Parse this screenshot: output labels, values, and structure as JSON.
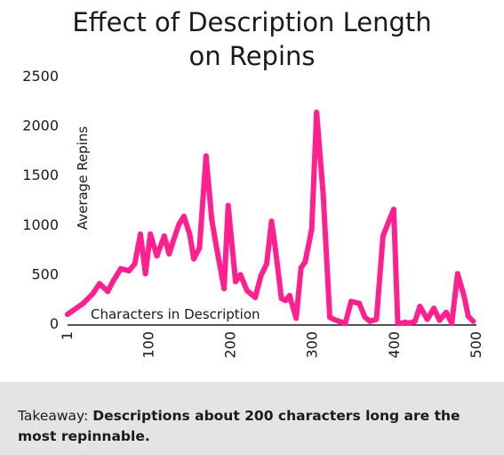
{
  "chart_data": {
    "type": "line",
    "title_line1": "Effect of Description Length",
    "title_line2": "on Repins",
    "xlabel": "Characters in Description",
    "ylabel": "Average Repins",
    "xlim": [
      1,
      500
    ],
    "ylim": [
      0,
      2500
    ],
    "x_ticks": [
      "1",
      "100",
      "200",
      "300",
      "400",
      "500"
    ],
    "y_ticks": [
      "0",
      "500",
      "1000",
      "1500",
      "2000",
      "2500"
    ],
    "grid": false,
    "series_color": "#ff1f8e",
    "series": [
      {
        "x": [
          1,
          20,
          32,
          40,
          50,
          57,
          66,
          76,
          83,
          90,
          96,
          102,
          110,
          119,
          125,
          130,
          137,
          143,
          150,
          155,
          162,
          170,
          177,
          182,
          192,
          197,
          206,
          212,
          220,
          230,
          237,
          244,
          250,
          254,
          262,
          267,
          272,
          280,
          286,
          291,
          299,
          305,
          313,
          321,
          326,
          332,
          340,
          347,
          357,
          364,
          370,
          378,
          386,
          394,
          399,
          404,
          409,
          413,
          418,
          425,
          431,
          440,
          448,
          455,
          463,
          470,
          477,
          485,
          490,
          496
        ],
        "values": [
          90,
          200,
          300,
          400,
          320,
          430,
          550,
          530,
          600,
          900,
          500,
          900,
          680,
          880,
          700,
          830,
          1000,
          1080,
          900,
          650,
          760,
          1690,
          1050,
          800,
          350,
          1190,
          420,
          490,
          330,
          260,
          480,
          600,
          1030,
          800,
          250,
          230,
          280,
          50,
          560,
          620,
          950,
          2130,
          1300,
          60,
          40,
          20,
          0,
          220,
          200,
          60,
          20,
          40,
          880,
          1050,
          1150,
          0,
          0,
          10,
          0,
          20,
          170,
          40,
          150,
          30,
          110,
          0,
          500,
          270,
          70,
          20
        ]
      }
    ]
  },
  "footer": {
    "prefix": "Takeaway: ",
    "bold": "Descriptions about 200 characters long are the most repinnable."
  }
}
